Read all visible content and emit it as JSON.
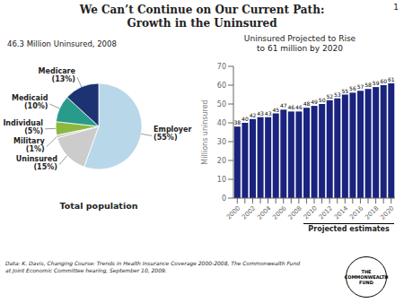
{
  "title": "We Can’t Continue on Our Current Path:\nGrowth in the Uninsured",
  "annotations": [
    "Data:  K. Davis, Changing Course: Trends in Health Insurance Coverage 2000-2008, The Commonwealth Fund\nat Joint Economic Committee hearing, September 10, 2009.",
    "1",
    "THE\nCOMMONWEALTH\nFUND"
  ],
  "chart_data": [
    {
      "type": "pie",
      "title": "46.3 Million Uninsured, 2008",
      "categories": [
        "Employer",
        "Uninsured",
        "Military",
        "Individual",
        "Medicaid",
        "Medicare"
      ],
      "values": [
        55,
        15,
        1,
        5,
        10,
        13
      ],
      "value_labels": [
        "(55%)",
        "(15%)",
        "(1%)",
        "(5%)",
        "(10%)",
        "(13%)"
      ],
      "data_labels": true,
      "colors": [
        "#b8d8ea",
        "#cccccc",
        "#cccccc",
        "#8db840",
        "#2a9b8b",
        "#1c3272"
      ],
      "annotations": [
        "Total population"
      ]
    },
    {
      "type": "bar",
      "title": "Uninsured Projected to Rise\nto 61 million by 2020",
      "categories": [
        "2000",
        null,
        "2002",
        null,
        "2004",
        null,
        "2006",
        null,
        "2008",
        null,
        "2010",
        null,
        "2012",
        null,
        "2014",
        null,
        "2016",
        null,
        "2018",
        null,
        "2020"
      ],
      "values": [
        38,
        40,
        42,
        43,
        43,
        45,
        47,
        46,
        46,
        48,
        49,
        50,
        52,
        53,
        55,
        56,
        57,
        58,
        59,
        60,
        61
      ],
      "color": "#1a237e",
      "ylabel": "Millions uninsured",
      "ylim": [
        0,
        70
      ],
      "yticks": [
        0,
        10,
        20,
        30,
        40,
        50,
        60,
        70
      ],
      "grid": false,
      "data_labels": true,
      "annotations": [
        {
          "text": "Projected estimates",
          "x_start": 9
        }
      ]
    }
  ]
}
